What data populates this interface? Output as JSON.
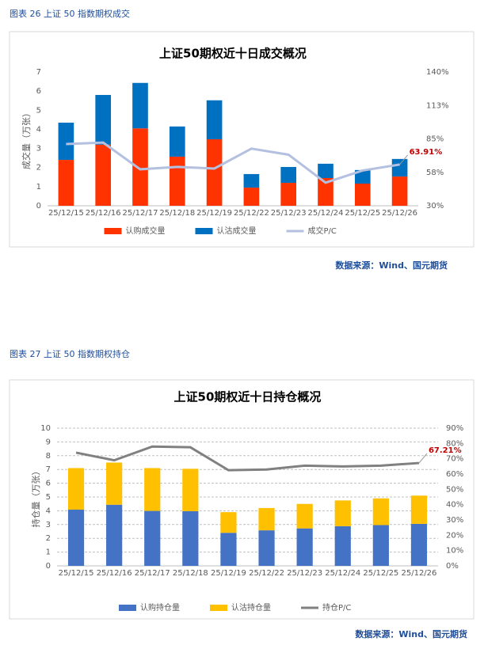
{
  "figures": [
    {
      "caption": "图表 26  上证 50 指数期权成交",
      "source": "数据来源：Wind、国元期货"
    },
    {
      "caption": "图表 27  上证 50 指数期权持仓",
      "source": "数据来源：Wind、国元期货"
    }
  ],
  "chart_data": [
    {
      "type": "bar",
      "stacked": true,
      "title": "上证50期权近十日成交概况",
      "y_label": "成交量（万张）",
      "grid": false,
      "legend": "bottom",
      "categories": [
        "25/12/15",
        "25/12/16",
        "25/12/17",
        "25/12/18",
        "25/12/19",
        "25/12/22",
        "25/12/23",
        "25/12/24",
        "25/12/25",
        "25/12/26"
      ],
      "series": [
        {
          "name": "认购成交量",
          "type": "bar",
          "color": "#ff3300",
          "values": [
            2.4,
            3.2,
            4.05,
            2.57,
            3.48,
            0.95,
            1.2,
            1.45,
            1.16,
            1.53
          ]
        },
        {
          "name": "认沽成交量",
          "type": "bar",
          "color": "#0070c0",
          "values": [
            1.95,
            2.6,
            2.38,
            1.58,
            2.04,
            0.71,
            0.83,
            0.75,
            0.71,
            0.92
          ]
        },
        {
          "name": "成交P/C",
          "type": "line",
          "axis": "y2",
          "color": "#b4c0e0",
          "values": [
            80.8,
            82,
            60,
            62,
            60.6,
            77,
            72,
            49,
            59,
            63.91
          ],
          "value_labels": [
            null,
            null,
            null,
            null,
            null,
            null,
            null,
            null,
            null,
            "63.91%"
          ]
        }
      ],
      "ylim": [
        0,
        7
      ],
      "yticks": [
        0,
        1,
        2,
        3,
        4,
        5,
        6,
        7
      ],
      "y2lim": [
        30,
        140
      ],
      "y2ticks": [
        {
          "value": 30,
          "label": "30%"
        },
        {
          "value": 57.5,
          "label": "58%"
        },
        {
          "value": 85,
          "label": "85%"
        },
        {
          "value": 112.5,
          "label": "113%"
        },
        {
          "value": 140,
          "label": "140%"
        }
      ]
    },
    {
      "type": "bar",
      "stacked": true,
      "title": "上证50期权近十日持仓概况",
      "y_label": "持仓量（万张）",
      "grid": true,
      "legend": "bottom",
      "categories": [
        "25/12/15",
        "25/12/16",
        "25/12/17",
        "25/12/18",
        "25/12/19",
        "25/12/22",
        "25/12/23",
        "25/12/24",
        "25/12/25",
        "25/12/26"
      ],
      "series": [
        {
          "name": "认购持仓量",
          "type": "bar",
          "color": "#4472c4",
          "values": [
            4.08,
            4.44,
            3.99,
            3.97,
            2.4,
            2.58,
            2.72,
            2.88,
            2.96,
            3.05
          ]
        },
        {
          "name": "认沽持仓量",
          "type": "bar",
          "color": "#ffc000",
          "values": [
            3.02,
            3.06,
            3.11,
            3.08,
            1.5,
            1.62,
            1.78,
            1.87,
            1.94,
            2.05
          ]
        },
        {
          "name": "持仓P/C",
          "type": "line",
          "axis": "y2",
          "color": "#808080",
          "values": [
            74,
            69,
            78,
            77.5,
            62.5,
            63,
            65.5,
            65,
            65.5,
            67.21
          ],
          "value_labels": [
            null,
            null,
            null,
            null,
            null,
            null,
            null,
            null,
            null,
            "67.21%"
          ]
        }
      ],
      "ylim": [
        0,
        10
      ],
      "yticks": [
        0,
        1,
        2,
        3,
        4,
        5,
        6,
        7,
        8,
        9,
        10
      ],
      "y2lim": [
        0,
        90
      ],
      "y2ticks": [
        {
          "value": 0,
          "label": "0%"
        },
        {
          "value": 10,
          "label": "10%"
        },
        {
          "value": 20,
          "label": "20%"
        },
        {
          "value": 30,
          "label": "30%"
        },
        {
          "value": 40,
          "label": "40%"
        },
        {
          "value": 50,
          "label": "50%"
        },
        {
          "value": 60,
          "label": "60%"
        },
        {
          "value": 70,
          "label": "70%"
        },
        {
          "value": 80,
          "label": "80%"
        },
        {
          "value": 90,
          "label": "90%"
        }
      ]
    }
  ]
}
